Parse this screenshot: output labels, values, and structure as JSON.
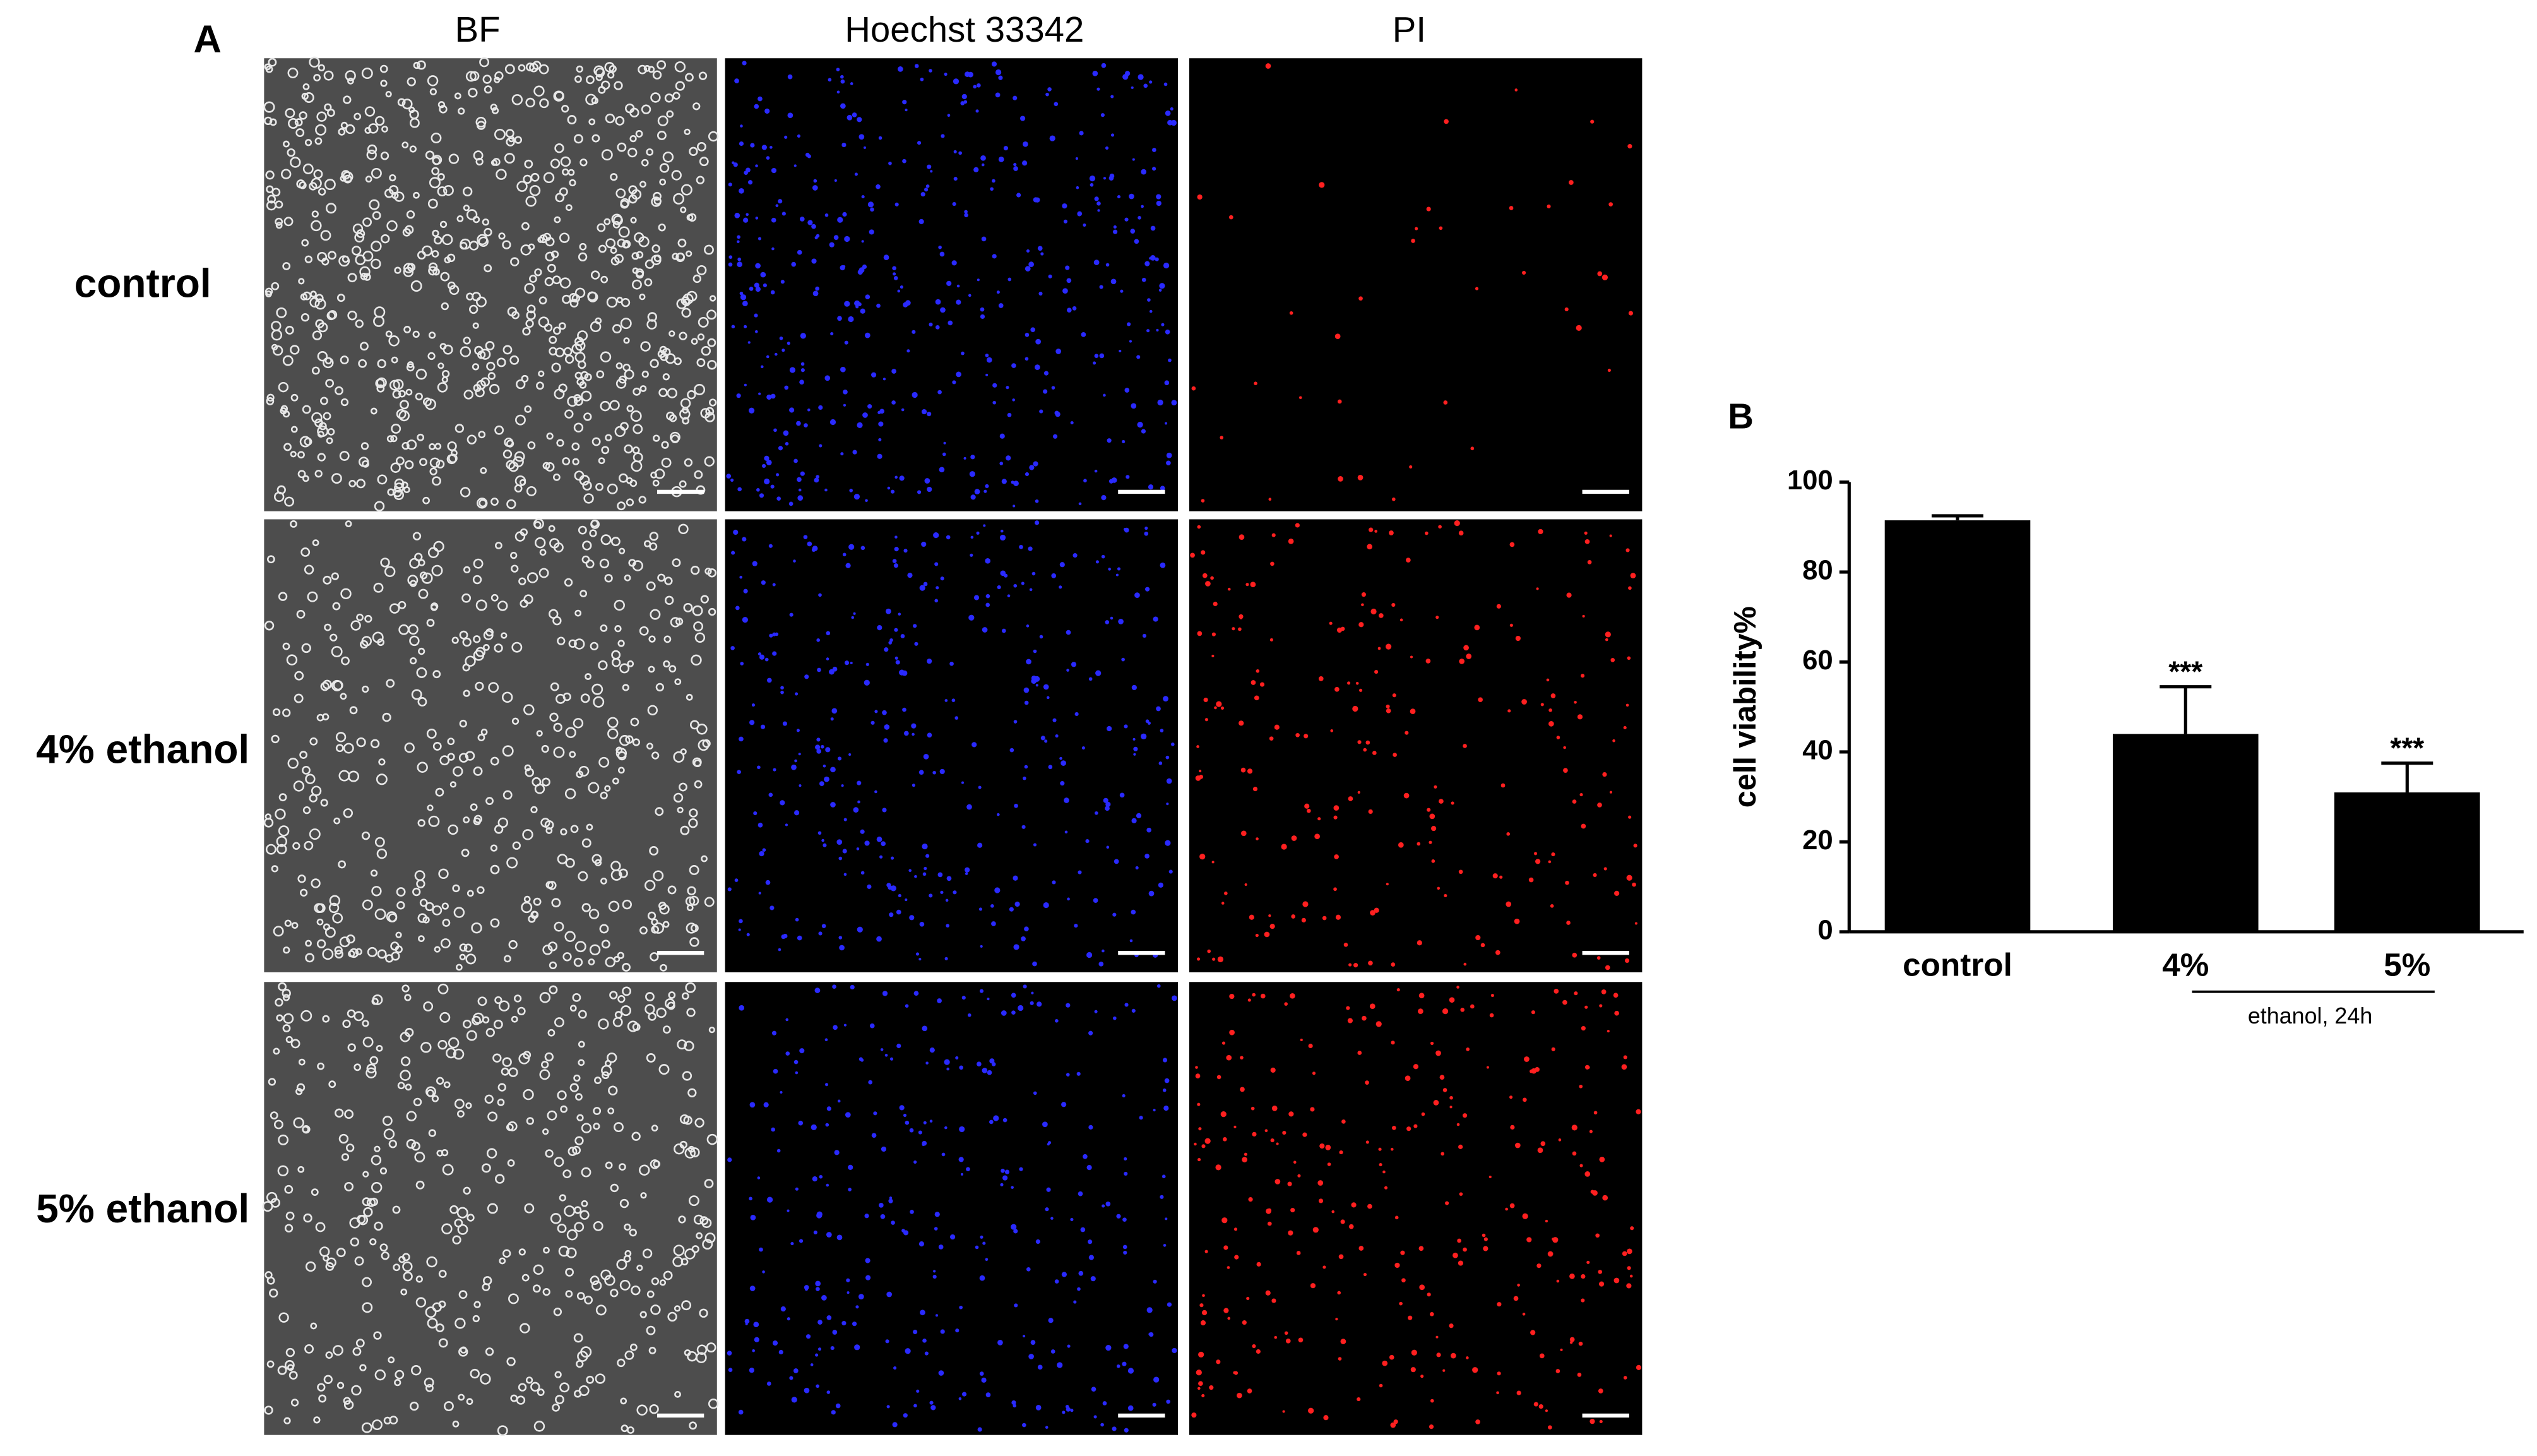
{
  "panel_a": {
    "label": "A",
    "columns": [
      "BF",
      "Hoechst 33342",
      "PI"
    ],
    "rows": [
      "control",
      "4% ethanol",
      "5% ethanol"
    ]
  },
  "chart_data": {
    "type": "bar",
    "panel_label": "B",
    "ylabel": "cell viability%",
    "categories": [
      "control",
      "4%",
      "5%"
    ],
    "values": [
      91.5,
      44,
      31
    ],
    "errors": [
      1,
      10.5,
      6.5
    ],
    "significance": [
      null,
      "***",
      "***"
    ],
    "group_label": "ethanol, 24h",
    "color": "#000000",
    "ylim": [
      0,
      100
    ],
    "yticks": [
      0,
      20,
      40,
      60,
      80,
      100
    ]
  }
}
